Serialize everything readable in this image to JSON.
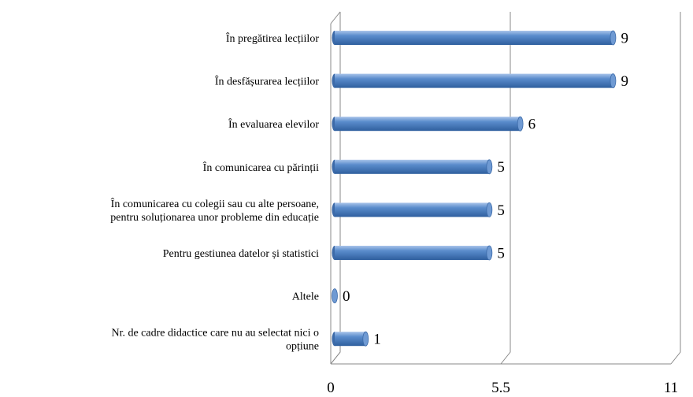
{
  "chart_data": {
    "type": "bar",
    "orientation": "horizontal",
    "categories": [
      "În pregătirea lecțiilor",
      "În desfășurarea lecțiilor",
      "În evaluarea elevilor",
      "În comunicarea cu părinții",
      "În comunicarea cu colegii sau cu alte persoane,\npentru soluționarea unor probleme din educație",
      "Pentru gestiunea datelor și statistici",
      "Altele",
      "Nr.  de cadre didactice care nu au selectat nici o\nopțiune"
    ],
    "values": [
      9,
      9,
      6,
      5,
      5,
      5,
      0,
      1
    ],
    "color": "#4f81bd",
    "xlim": [
      0,
      11
    ],
    "xticks": [
      0,
      5.5,
      11
    ],
    "grid": true
  }
}
